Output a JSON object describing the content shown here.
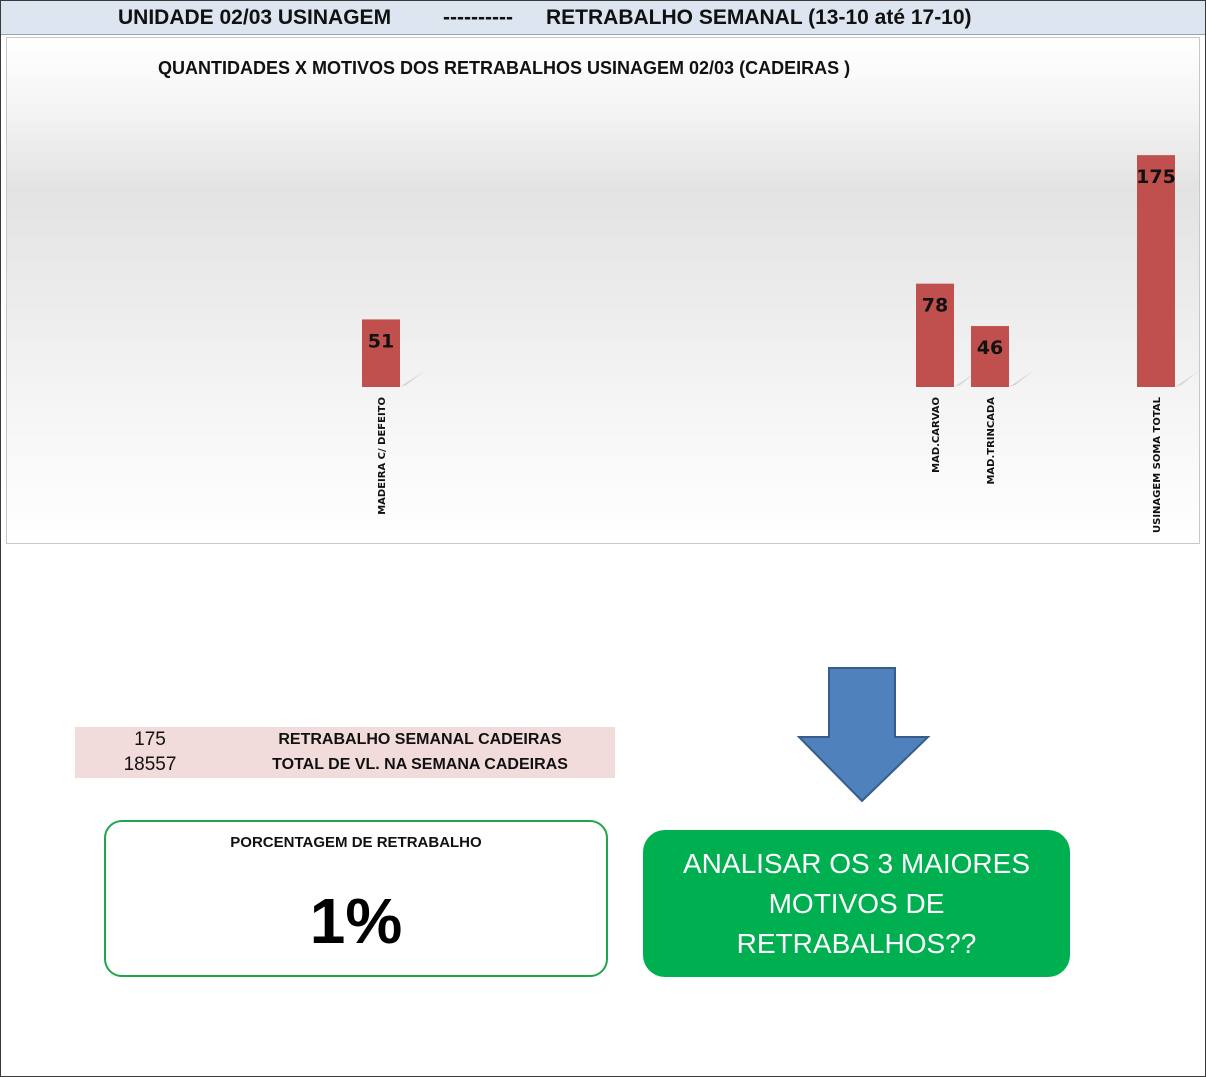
{
  "header": {
    "left": "UNIDADE 02/03 USINAGEM",
    "dashes": "----------",
    "right": "RETRABALHO SEMANAL (13-10 até 17-10)"
  },
  "chart_data": {
    "type": "bar",
    "title": "QUANTIDADES X MOTIVOS DOS RETRABALHOS USINAGEM 02/03 (CADEIRAS )",
    "categories": [
      "MADEIRA C/ DEFEITO",
      "MAD.CARVAO",
      "MAD.TRINCADA",
      "USINAGEM SOMA TOTAL"
    ],
    "values": [
      51,
      78,
      46,
      175
    ],
    "bar_color": "#c0504d",
    "xlabel": "",
    "ylabel": "",
    "grid": false
  },
  "summary": {
    "rows": [
      {
        "value": "175",
        "label": "RETRABALHO SEMANAL CADEIRAS"
      },
      {
        "value": "18557",
        "label": "TOTAL DE VL. NA SEMANA CADEIRAS"
      }
    ]
  },
  "percentage": {
    "title": "PORCENTAGEM DE RETRABALHO",
    "value": "1%"
  },
  "action": {
    "text": "ANALISAR OS 3 MAIORES MOTIVOS DE RETRABALHOS??"
  },
  "colors": {
    "accent_green": "#00b050",
    "arrow_blue": "#4f81bd",
    "bar_red": "#c0504d"
  }
}
